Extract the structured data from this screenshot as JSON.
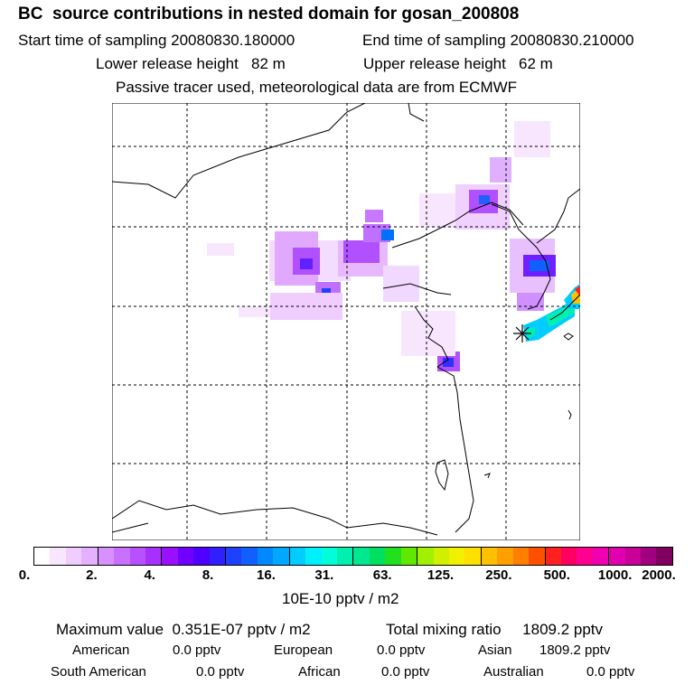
{
  "header": {
    "title": "BC  source contributions in nested domain for gosan_200808",
    "start_time_label": "Start time of sampling 20080830.180000",
    "end_time_label": "End time of sampling 20080830.210000",
    "lower_release": "Lower release height   82 m",
    "upper_release": "Upper release height   62 m",
    "tracer_note": "Passive tracer used, meteorological data are from ECMWF"
  },
  "map": {
    "description_markers": {
      "receptor": "gosan-receptor-marker"
    }
  },
  "colorbar": {
    "colors": [
      "#ffffff",
      "#f8e6ff",
      "#f0ccff",
      "#e4b0ff",
      "#d890ff",
      "#c870ff",
      "#b850ff",
      "#a830ff",
      "#9810ff",
      "#7000ff",
      "#5000ff",
      "#3020ff",
      "#2040ff",
      "#1060ff",
      "#0088ff",
      "#00a8ff",
      "#00ccff",
      "#00f0ff",
      "#00ffd8",
      "#00f0b0",
      "#00e890",
      "#00e060",
      "#20e020",
      "#60e800",
      "#a0f000",
      "#d0f000",
      "#f0f000",
      "#ffe000",
      "#ffc000",
      "#ffa000",
      "#ff8000",
      "#ff5000",
      "#ff2020",
      "#ff0060",
      "#ff0090",
      "#f000b0",
      "#e000b0",
      "#c80098",
      "#a00080",
      "#800060"
    ],
    "tick_labels": [
      "0.",
      "2.",
      "4.",
      "8.",
      "16.",
      "31.",
      "63.",
      "125.",
      "250.",
      "500.",
      "1000.",
      "2000."
    ],
    "units": "10E-10 pptv / m2"
  },
  "summary": {
    "max_value": "Maximum value  0.351E-07 pptv / m2",
    "total_mixing": "Total mixing ratio     1809.2 pptv",
    "american_label": "American",
    "american_value": "0.0 pptv",
    "european_label": "European",
    "european_value": "0.0 pptv",
    "asian_label": "Asian",
    "asian_value": "1809.2 pptv",
    "south_american_label": "South American",
    "south_american_value": "0.0 pptv",
    "african_label": "African",
    "african_value": "0.0 pptv",
    "australian_label": "Australian",
    "australian_value": "0.0 pptv"
  }
}
